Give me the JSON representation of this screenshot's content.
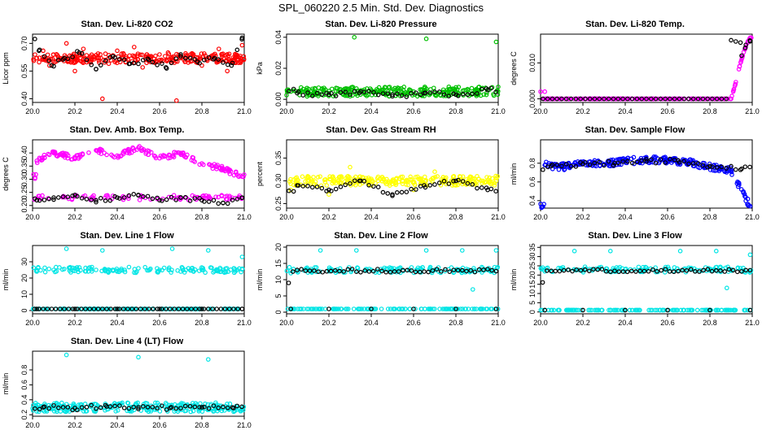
{
  "page": {
    "title": "SPL_060220  2.5 Min. Std. Dev. Diagnostics"
  },
  "chart_data": [
    {
      "type": "scatter",
      "title": "Stan. Dev. Li-820 CO2",
      "ylabel": "Licor ppm",
      "xlim": [
        20.0,
        21.0
      ],
      "ylim": [
        0.38,
        0.75
      ],
      "xticks": [
        "20.0",
        "20.2",
        "20.4",
        "20.6",
        "20.8",
        "21.0"
      ],
      "yticks": [
        "0.40",
        "0.55",
        "0.70"
      ],
      "ytick_values": [
        0.4,
        0.55,
        0.7
      ],
      "colors": {
        "main": "#ff0000",
        "alt": "#000000"
      },
      "series": [
        {
          "values_summary": "dense scatter",
          "x": [
            20.02,
            20.05,
            20.08,
            20.12,
            20.16,
            20.2,
            20.24,
            20.28,
            20.32,
            20.33,
            20.36,
            20.4,
            20.44,
            20.48,
            20.52,
            20.56,
            20.6,
            20.64,
            20.68,
            20.72,
            20.76,
            20.8,
            20.84,
            20.88,
            20.92,
            20.96,
            20.99
          ],
          "y": [
            0.62,
            0.66,
            0.58,
            0.63,
            0.7,
            0.55,
            0.67,
            0.61,
            0.64,
            0.4,
            0.59,
            0.66,
            0.6,
            0.68,
            0.57,
            0.63,
            0.61,
            0.65,
            0.39,
            0.6,
            0.64,
            0.58,
            0.62,
            0.67,
            0.55,
            0.63,
            0.69
          ]
        },
        {
          "values_summary": "black points",
          "x": [
            20.03,
            20.09,
            20.15,
            20.22,
            20.3,
            20.38,
            20.46,
            20.55,
            20.63,
            20.7,
            20.78,
            20.86,
            20.94,
            20.99
          ],
          "y": [
            0.66,
            0.58,
            0.62,
            0.65,
            0.56,
            0.63,
            0.59,
            0.61,
            0.57,
            0.64,
            0.6,
            0.62,
            0.58,
            0.73
          ]
        }
      ]
    },
    {
      "type": "scatter",
      "title": "Stan. Dev. Li-820 Pressure",
      "ylabel": "kPa",
      "xlim": [
        20.0,
        21.0
      ],
      "ylim": [
        -0.002,
        0.042
      ],
      "xticks": [
        "20.0",
        "20.2",
        "20.4",
        "20.6",
        "20.8",
        "21.0"
      ],
      "yticks": [
        "0.00",
        "0.02",
        "0.04"
      ],
      "ytick_values": [
        0.0,
        0.02,
        0.04
      ],
      "colors": {
        "main": "#00c000",
        "alt": "#000000"
      },
      "series": [
        {
          "x": [
            20.02,
            20.1,
            20.2,
            20.3,
            20.32,
            20.4,
            20.5,
            20.6,
            20.66,
            20.7,
            20.8,
            20.9,
            20.99
          ],
          "y": [
            0.005,
            0.003,
            0.004,
            0.002,
            0.04,
            0.006,
            0.003,
            0.005,
            0.039,
            0.004,
            0.003,
            0.005,
            0.037
          ]
        },
        {
          "x": [
            20.05,
            20.2,
            20.35,
            20.5,
            20.65,
            20.8,
            20.95
          ],
          "y": [
            0.004,
            0.003,
            0.005,
            0.002,
            0.004,
            0.003,
            0.006
          ]
        }
      ]
    },
    {
      "type": "scatter",
      "title": "Stan. Dev. Li-820 Temp.",
      "ylabel": "degrees C",
      "xlim": [
        20.0,
        21.0
      ],
      "ylim": [
        -0.001,
        0.018
      ],
      "xticks": [
        "20.0",
        "20.2",
        "20.4",
        "20.6",
        "20.8",
        "21.0"
      ],
      "yticks": [
        "0.000",
        "0.010"
      ],
      "ytick_values": [
        0.0,
        0.01
      ],
      "colors": {
        "main": "#ff00ff",
        "alt": "#000000"
      },
      "series": [
        {
          "x": [
            20.0,
            20.02,
            20.1,
            20.3,
            20.5,
            20.7,
            20.9,
            20.92,
            20.94,
            20.96,
            20.98,
            20.99
          ],
          "y": [
            0.002,
            0.002,
            0.0,
            0.0,
            0.0,
            0.0,
            0.0,
            0.004,
            0.009,
            0.013,
            0.016,
            0.017
          ]
        },
        {
          "x": [
            20.95,
            20.97,
            20.99
          ],
          "y": [
            0.012,
            0.015,
            0.016
          ]
        }
      ]
    },
    {
      "type": "scatter",
      "title": "Stan. Dev. Amb. Box Temp.",
      "ylabel": "degrees C",
      "xlim": [
        20.0,
        21.0
      ],
      "ylim": [
        0.19,
        0.45
      ],
      "xticks": [
        "20.0",
        "20.2",
        "20.4",
        "20.6",
        "20.8",
        "21.0"
      ],
      "yticks": [
        "0.20",
        "0.25",
        "0.30",
        "0.35",
        "0.40"
      ],
      "ytick_values": [
        0.2,
        0.25,
        0.3,
        0.35,
        0.4
      ],
      "colors": {
        "main": "#ff00ff",
        "alt": "#000000"
      },
      "series": [
        {
          "x": [
            20.02,
            20.1,
            20.2,
            20.3,
            20.4,
            20.5,
            20.6,
            20.7,
            20.8,
            20.9,
            20.99
          ],
          "y": [
            0.37,
            0.4,
            0.38,
            0.41,
            0.39,
            0.42,
            0.38,
            0.4,
            0.36,
            0.34,
            0.31
          ]
        },
        {
          "x": [
            20.02,
            20.1,
            20.2,
            20.3,
            20.4,
            20.5,
            20.6,
            20.7,
            20.8,
            20.9,
            20.99
          ],
          "y": [
            0.22,
            0.23,
            0.24,
            0.22,
            0.23,
            0.24,
            0.22,
            0.23,
            0.22,
            0.21,
            0.23
          ]
        }
      ]
    },
    {
      "type": "scatter",
      "title": "Stan. Dev. Gas Stream RH",
      "ylabel": "percent",
      "xlim": [
        20.0,
        21.0
      ],
      "ylim": [
        0.24,
        0.39
      ],
      "xticks": [
        "20.0",
        "20.2",
        "20.4",
        "20.6",
        "20.8",
        "21.0"
      ],
      "yticks": [
        "0.25",
        "0.30",
        "0.35"
      ],
      "ytick_values": [
        0.25,
        0.3,
        0.35
      ],
      "colors": {
        "main": "#ffff00",
        "alt": "#000000"
      },
      "series": [
        {
          "x": [
            20.02,
            20.1,
            20.2,
            20.3,
            20.4,
            20.5,
            20.6,
            20.7,
            20.8,
            20.9,
            20.99
          ],
          "y": [
            0.28,
            0.31,
            0.27,
            0.33,
            0.29,
            0.3,
            0.28,
            0.32,
            0.29,
            0.31,
            0.3
          ]
        },
        {
          "x": [
            20.05,
            20.2,
            20.35,
            20.5,
            20.65,
            20.8,
            20.95
          ],
          "y": [
            0.29,
            0.28,
            0.3,
            0.27,
            0.29,
            0.3,
            0.28
          ]
        }
      ]
    },
    {
      "type": "scatter",
      "title": "Stan. Dev. Sample Flow",
      "ylabel": "ml/min",
      "xlim": [
        20.0,
        21.0
      ],
      "ylim": [
        0.32,
        1.05
      ],
      "xticks": [
        "20.0",
        "20.2",
        "20.4",
        "20.6",
        "20.8",
        "21.0"
      ],
      "yticks": [
        "0.4",
        "0.6",
        "0.8"
      ],
      "ytick_values": [
        0.4,
        0.6,
        0.8
      ],
      "colors": {
        "main": "#0000ff",
        "alt": "#000000"
      },
      "series": [
        {
          "x": [
            20.02,
            20.1,
            20.2,
            20.3,
            20.4,
            20.5,
            20.6,
            20.7,
            20.8,
            20.9,
            20.99
          ],
          "y": [
            0.78,
            0.76,
            0.8,
            0.79,
            0.82,
            0.84,
            0.83,
            0.81,
            0.76,
            0.72,
            0.34
          ]
        },
        {
          "x": [
            20.05,
            20.2,
            20.35,
            20.5,
            20.65,
            20.8,
            20.95
          ],
          "y": [
            0.77,
            0.79,
            0.8,
            0.82,
            0.83,
            0.77,
            0.74
          ]
        }
      ]
    },
    {
      "type": "scatter",
      "title": "Stan. Dev. Line 1 Flow",
      "ylabel": "ml/min",
      "xlim": [
        20.0,
        21.0
      ],
      "ylim": [
        -2,
        40
      ],
      "xticks": [
        "20.0",
        "20.2",
        "20.4",
        "20.6",
        "20.8",
        "21.0"
      ],
      "yticks": [
        "0",
        "10",
        "20",
        "30"
      ],
      "ytick_values": [
        0,
        10,
        20,
        30
      ],
      "colors": {
        "main": "#00e5e5",
        "alt": "#000000"
      },
      "series": [
        {
          "x": [
            20.02,
            20.1,
            20.16,
            20.2,
            20.3,
            20.33,
            20.4,
            20.5,
            20.6,
            20.66,
            20.7,
            20.8,
            20.83,
            20.9,
            20.99
          ],
          "y": [
            24,
            25,
            38,
            26,
            25,
            37,
            24,
            26,
            25,
            38,
            24,
            25,
            37,
            25,
            33
          ]
        },
        {
          "x": [
            20.02,
            20.2,
            20.4,
            20.6,
            20.8,
            20.99
          ],
          "y": [
            1,
            1,
            1,
            1,
            1,
            1
          ]
        }
      ]
    },
    {
      "type": "scatter",
      "title": "Stan. Dev. Line 2 Flow",
      "ylabel": "ml/min",
      "xlim": [
        20.0,
        21.0
      ],
      "ylim": [
        -0.5,
        20.5
      ],
      "xticks": [
        "20.0",
        "20.2",
        "20.4",
        "20.6",
        "20.8",
        "21.0"
      ],
      "yticks": [
        "0",
        "5",
        "10",
        "15",
        "20"
      ],
      "ytick_values": [
        0,
        5,
        10,
        15,
        20
      ],
      "colors": {
        "main": "#00e5e5",
        "alt": "#000000"
      },
      "series": [
        {
          "x": [
            20.02,
            20.1,
            20.16,
            20.2,
            20.33,
            20.4,
            20.5,
            20.66,
            20.7,
            20.8,
            20.83,
            20.88,
            20.99
          ],
          "y": [
            12,
            13,
            19,
            13,
            19,
            13,
            13,
            19,
            13,
            13,
            19,
            7,
            19
          ]
        },
        {
          "x": [
            20.02,
            20.2,
            20.4,
            20.6,
            20.8,
            20.99
          ],
          "y": [
            1,
            1,
            1,
            1,
            1,
            1
          ]
        }
      ]
    },
    {
      "type": "scatter",
      "title": "Stan. Dev. Line 3 Flow",
      "ylabel": "ml/min",
      "xlim": [
        20.0,
        21.0
      ],
      "ylim": [
        -1,
        36
      ],
      "xticks": [
        "20.0",
        "20.2",
        "20.4",
        "20.6",
        "20.8",
        "21.0"
      ],
      "yticks": [
        "0",
        "5",
        "10",
        "15",
        "20",
        "25",
        "30",
        "35"
      ],
      "ytick_values": [
        0,
        5,
        10,
        15,
        20,
        25,
        30,
        35
      ],
      "colors": {
        "main": "#00e5e5",
        "alt": "#000000"
      },
      "series": [
        {
          "x": [
            20.02,
            20.1,
            20.16,
            20.2,
            20.33,
            20.4,
            20.5,
            20.66,
            20.7,
            20.8,
            20.83,
            20.88,
            20.99
          ],
          "y": [
            22,
            23,
            33,
            23,
            33,
            23,
            24,
            33,
            24,
            23,
            33,
            13,
            31
          ]
        },
        {
          "x": [
            20.02,
            20.2,
            20.4,
            20.6,
            20.8,
            20.99
          ],
          "y": [
            1,
            1,
            1,
            1,
            1,
            1
          ]
        }
      ]
    },
    {
      "type": "scatter",
      "title": "Stan. Dev. Line 4 (LT) Flow",
      "ylabel": "ml/min",
      "xlim": [
        20.0,
        21.0
      ],
      "ylim": [
        0.18,
        1.05
      ],
      "xticks": [
        "20.0",
        "20.2",
        "20.4",
        "20.6",
        "20.8",
        "21.0"
      ],
      "yticks": [
        "0.2",
        "0.4",
        "0.6",
        "0.8"
      ],
      "ytick_values": [
        0.2,
        0.4,
        0.6,
        0.8
      ],
      "colors": {
        "main": "#00e5e5",
        "alt": "#000000"
      },
      "series": [
        {
          "x": [
            20.02,
            20.1,
            20.16,
            20.2,
            20.3,
            20.4,
            20.5,
            20.6,
            20.7,
            20.8,
            20.83,
            20.9,
            20.99
          ],
          "y": [
            0.3,
            0.29,
            1.0,
            0.3,
            0.34,
            0.31,
            0.97,
            0.3,
            0.29,
            0.3,
            0.94,
            0.29,
            0.28
          ]
        },
        {
          "x": [
            20.05,
            20.2,
            20.35,
            20.5,
            20.65,
            20.8,
            20.95
          ],
          "y": [
            0.3,
            0.29,
            0.31,
            0.3,
            0.29,
            0.3,
            0.29
          ]
        }
      ]
    }
  ]
}
